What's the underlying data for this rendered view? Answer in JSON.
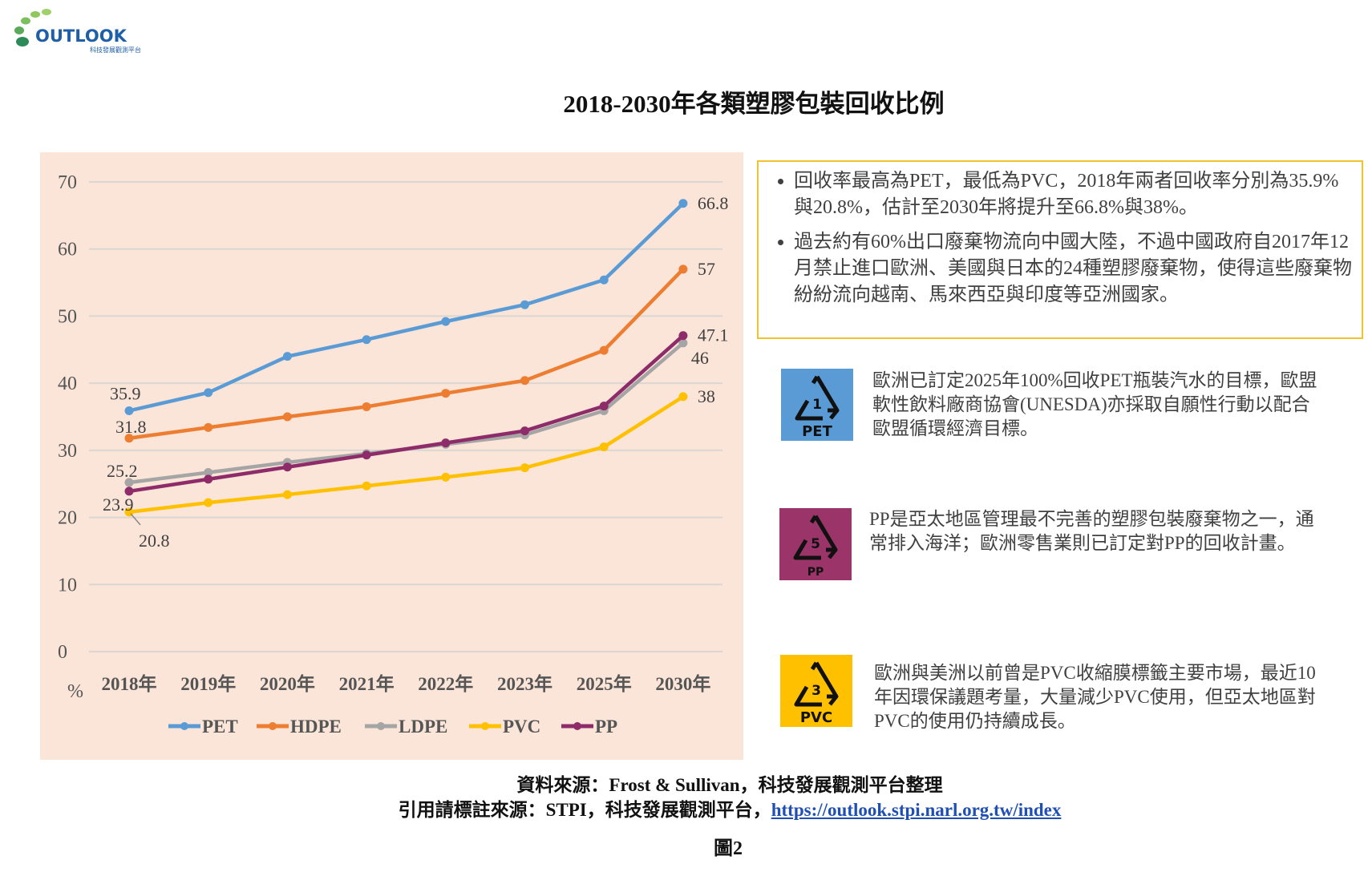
{
  "logo": {
    "brand": "OUTLOOK",
    "subtitle": "科技發展觀測平台"
  },
  "chart_data": {
    "type": "line",
    "title": "2018-2030年各類塑膠包裝回收比例",
    "xlabel": "",
    "ylabel": "%",
    "categories": [
      "2018年",
      "2019年",
      "2020年",
      "2021年",
      "2022年",
      "2023年",
      "2025年",
      "2030年"
    ],
    "ylim": [
      0,
      70
    ],
    "yticks": [
      "0",
      "10",
      "20",
      "30",
      "40",
      "50",
      "60",
      "70"
    ],
    "grid": true,
    "legend_position": "bottom",
    "series": [
      {
        "name": "PET",
        "color": "#5b9bd5",
        "values": [
          35.9,
          38.6,
          44.0,
          46.5,
          49.2,
          51.7,
          55.4,
          66.8
        ],
        "start_label": "35.9",
        "end_label": "66.8"
      },
      {
        "name": "HDPE",
        "color": "#ed7d31",
        "values": [
          31.8,
          33.4,
          35.0,
          36.5,
          38.5,
          40.4,
          44.9,
          57
        ],
        "start_label": "31.8",
        "end_label": "57"
      },
      {
        "name": "LDPE",
        "color": "#a5a5a5",
        "values": [
          25.2,
          26.7,
          28.2,
          29.5,
          30.9,
          32.3,
          35.9,
          46
        ],
        "start_label": "25.2",
        "end_label": "46"
      },
      {
        "name": "PVC",
        "color": "#ffc000",
        "values": [
          20.8,
          22.2,
          23.4,
          24.7,
          26.0,
          27.4,
          30.5,
          38
        ],
        "start_label": "20.8",
        "end_label": "38"
      },
      {
        "name": "PP",
        "color": "#8e2c6a",
        "values": [
          23.9,
          25.7,
          27.5,
          29.3,
          31.1,
          32.9,
          36.6,
          47.1
        ],
        "start_label": "23.9",
        "end_label": "47.1"
      }
    ]
  },
  "notes": [
    "回收率最高為PET，最低為PVC，2018年兩者回收率分別為35.9%與20.8%，估計至2030年將提升至66.8%與38%。",
    "過去約有60%出口廢棄物流向中國大陸，不過中國政府自2017年12月禁止進口歐洲、美國與日本的24種塑膠廢棄物，使得這些廢棄物紛紛流向越南、馬來西亞與印度等亞洲國家。"
  ],
  "recycling": [
    {
      "code": "1",
      "label": "PET",
      "color": "#5b9bd5",
      "text": "歐洲已訂定2025年100%回收PET瓶裝汽水的目標，歐盟軟性飲料廠商協會(UNESDA)亦採取自願性行動以配合歐盟循環經濟目標。"
    },
    {
      "code": "5",
      "label": "PP",
      "color": "#9b3468",
      "text": "PP是亞太地區管理最不完善的塑膠包裝廢棄物之一，通常排入海洋；歐洲零售業則已訂定對PP的回收計畫。"
    },
    {
      "code": "3",
      "label": "PVC",
      "color": "#ffc000",
      "text": "歐洲與美洲以前曾是PVC收縮膜標籤主要市場，最近10年因環保議題考量，大量減少PVC使用，但亞太地區對PVC的使用仍持續成長。"
    }
  ],
  "footer": {
    "source": "資料來源：Frost & Sullivan，科技發展觀測平台整理",
    "cite_prefix": "引用請標註來源：STPI，科技發展觀測平台，",
    "cite_link": "https://outlook.stpi.narl.org.tw/index",
    "figure": "圖2"
  }
}
